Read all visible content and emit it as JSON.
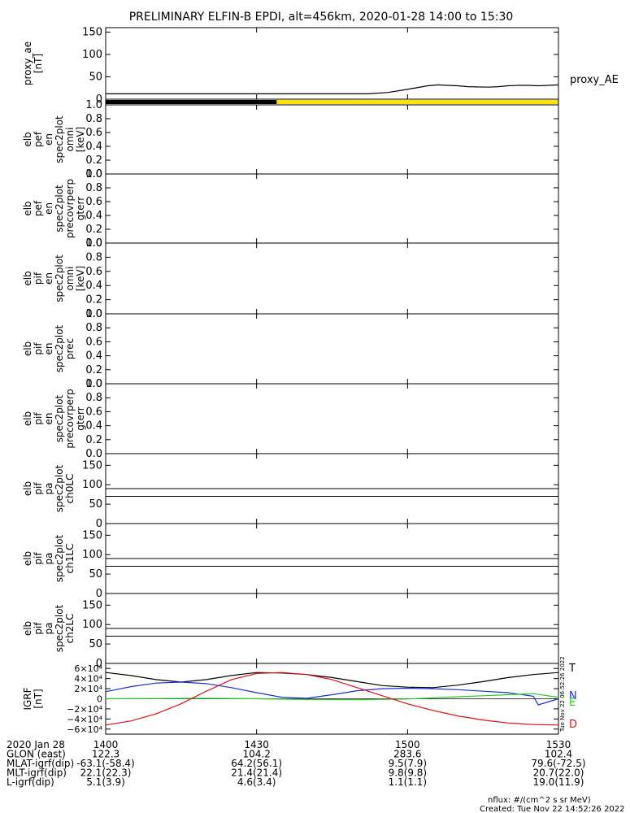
{
  "title": "PRELIMINARY ELFIN-B EPDI, alt=456km, 2020-01-28 14:00 to 15:30",
  "colors": {
    "black": "#000000",
    "yellow": "#ffe400",
    "blue": "#1a2fd6",
    "green": "#22cc22",
    "red": "#e01010"
  },
  "chart_data": [
    {
      "type": "line",
      "name": "proxy_ae",
      "ylabel_lines": [
        "proxy_ae",
        "[nT]"
      ],
      "ylim": [
        0,
        160
      ],
      "yticks": [
        "150",
        "100",
        "50",
        "0"
      ],
      "series": [
        {
          "name": "proxy_AE",
          "x": [
            0,
            40,
            52,
            56,
            60,
            64,
            66,
            68,
            70,
            72,
            76,
            78,
            80,
            82,
            84,
            86,
            88,
            90
          ],
          "y": [
            12,
            12,
            12,
            15,
            22,
            30,
            32,
            31,
            30,
            28,
            27,
            28,
            30,
            31,
            31,
            30,
            31,
            32
          ]
        }
      ],
      "legend": "proxy_AE"
    },
    {
      "type": "bar",
      "name": "data-coverage-bar",
      "segments": [
        {
          "start": 0,
          "end": 34,
          "color": "#000000"
        },
        {
          "start": 34,
          "end": 90,
          "color": "#ffe400"
        }
      ]
    },
    {
      "type": "line",
      "name": "elb-pef-en-spec2plot-omni",
      "ylabel_lines": [
        "elb",
        "pef",
        "en",
        "spec2plot",
        "omni",
        "[keV]"
      ],
      "ylim": [
        0,
        1
      ],
      "yticks": [
        "1.0",
        "0.8",
        "0.6",
        "0.4",
        "0.2",
        "0.0"
      ]
    },
    {
      "type": "line",
      "name": "elb-pef-en-spec2plot-precovrperp-gterr",
      "ylabel_lines": [
        "elb",
        "pef",
        "en",
        "spec2plot",
        "precovrperp",
        "gterr"
      ],
      "ylim": [
        0,
        1
      ],
      "yticks": [
        "1.0",
        "0.8",
        "0.6",
        "0.4",
        "0.2",
        "0.0"
      ]
    },
    {
      "type": "line",
      "name": "elb-pif-en-spec2plot-omni",
      "ylabel_lines": [
        "elb",
        "pif",
        "en",
        "spec2plot",
        "omni",
        "[keV]"
      ],
      "ylim": [
        0,
        1
      ],
      "yticks": [
        "1.0",
        "0.8",
        "0.6",
        "0.4",
        "0.2",
        "0.0"
      ]
    },
    {
      "type": "line",
      "name": "elb-pif-en-spec2plot-prec",
      "ylabel_lines": [
        "elb",
        "pif",
        "en",
        "spec2plot",
        "prec"
      ],
      "ylim": [
        0,
        1
      ],
      "yticks": [
        "1.0",
        "0.8",
        "0.6",
        "0.4",
        "0.2",
        "0.0"
      ]
    },
    {
      "type": "line",
      "name": "elb-pif-en-spec2plot-precovrperp-gterr",
      "ylabel_lines": [
        "elb",
        "pif",
        "en",
        "spec2plot",
        "precovrperp",
        "gterr"
      ],
      "ylim": [
        0,
        1
      ],
      "yticks": [
        "1.0",
        "0.8",
        "0.6",
        "0.4",
        "0.2",
        "0.0"
      ]
    },
    {
      "type": "line",
      "name": "elb-pif-pa-spec2plot-ch0LC",
      "ylabel_lines": [
        "elb",
        "pif",
        "pa",
        "spec2plot",
        "ch0LC"
      ],
      "ylim": [
        0,
        180
      ],
      "yticks": [
        "150",
        "100",
        "50",
        "0"
      ],
      "hlines": [
        90,
        70
      ]
    },
    {
      "type": "line",
      "name": "elb-pif-pa-spec2plot-ch1LC",
      "ylabel_lines": [
        "elb",
        "pif",
        "pa",
        "spec2plot",
        "ch1LC"
      ],
      "ylim": [
        0,
        180
      ],
      "yticks": [
        "150",
        "100",
        "50",
        "0"
      ],
      "hlines": [
        90,
        70
      ]
    },
    {
      "type": "line",
      "name": "elb-pif-pa-spec2plot-ch2LC",
      "ylabel_lines": [
        "elb",
        "pif",
        "pa",
        "spec2plot",
        "ch2LC"
      ],
      "ylim": [
        0,
        180
      ],
      "yticks": [
        "150",
        "100",
        "50",
        "0"
      ],
      "hlines": [
        90,
        70
      ]
    },
    {
      "type": "line",
      "name": "igrf",
      "ylabel_lines": [
        "IGRF",
        "[nT]"
      ],
      "ylim": [
        -70000,
        70000
      ],
      "yticks": [
        "6×10⁴",
        "4×10⁴",
        "2×10⁴",
        "0",
        "−2×10⁴",
        "−4×10⁴",
        "−6×10⁴"
      ],
      "series": [
        {
          "name": "T",
          "color": "#000000",
          "x": [
            0,
            5,
            10,
            15,
            20,
            25,
            30,
            35,
            40,
            45,
            50,
            55,
            60,
            65,
            70,
            75,
            80,
            85,
            90
          ],
          "y": [
            52000,
            46000,
            38000,
            33000,
            38000,
            46000,
            52000,
            51000,
            48000,
            42000,
            34000,
            26000,
            23000,
            22000,
            27000,
            34000,
            42000,
            48000,
            52000
          ]
        },
        {
          "name": "N",
          "color": "#1a2fd6",
          "x": [
            0,
            5,
            10,
            15,
            20,
            25,
            30,
            35,
            40,
            45,
            50,
            55,
            60,
            65,
            70,
            75,
            80,
            85,
            86,
            90
          ],
          "y": [
            14000,
            24000,
            31000,
            33000,
            30000,
            22000,
            12000,
            3000,
            1000,
            8000,
            16000,
            20000,
            21000,
            20000,
            18000,
            15000,
            12000,
            5000,
            -12000,
            0
          ]
        },
        {
          "name": "E",
          "color": "#22cc22",
          "x": [
            0,
            10,
            20,
            30,
            40,
            50,
            60,
            65,
            70,
            75,
            80,
            85,
            90
          ],
          "y": [
            0,
            500,
            1000,
            0,
            -1500,
            -2000,
            -500,
            2000,
            4000,
            6000,
            8000,
            10000,
            3000
          ]
        },
        {
          "name": "D",
          "color": "#e01010",
          "x": [
            0,
            5,
            10,
            15,
            20,
            25,
            30,
            35,
            40,
            45,
            50,
            55,
            60,
            65,
            70,
            75,
            80,
            85,
            90
          ],
          "y": [
            -52000,
            -44000,
            -30000,
            -10000,
            15000,
            38000,
            50000,
            52000,
            48000,
            38000,
            22000,
            6000,
            -10000,
            -23000,
            -34000,
            -42000,
            -48000,
            -51000,
            -52000
          ]
        }
      ],
      "legend": "right"
    }
  ],
  "right_labels": {
    "proxy": "proxy_AE",
    "T": "T",
    "N": "N",
    "E": "E",
    "D": "D"
  },
  "timestamp_vertical": "Tue Nov 22 06:52:26 2022",
  "footer": {
    "rows": [
      {
        "label": "2020 Jan 28",
        "values": [
          "1400",
          "1430",
          "1500",
          "1530"
        ]
      },
      {
        "label": "GLON (east)",
        "values": [
          "122.3",
          "104.2",
          "283.6",
          "102.4"
        ]
      },
      {
        "label": "MLAT-igrf(dip)",
        "values": [
          "-63.1(-58.4)",
          "64.2(56.1)",
          "9.5(7.9)",
          "79.6(-72.5)"
        ]
      },
      {
        "label": "MLT-igrf(dip)",
        "values": [
          "22.1(22.3)",
          "21.4(21.4)",
          "9.8(9.8)",
          "20.7(22.0)"
        ]
      },
      {
        "label": "L-igrf(dip)",
        "values": [
          "5.1(3.9)",
          "4.6(3.4)",
          "1.1(1.1)",
          "19.0(11.9)"
        ]
      }
    ],
    "nflux": "nflux: #/(cm^2 s sr MeV)",
    "created": "Created: Tue Nov 22 14:52:26 2022"
  }
}
